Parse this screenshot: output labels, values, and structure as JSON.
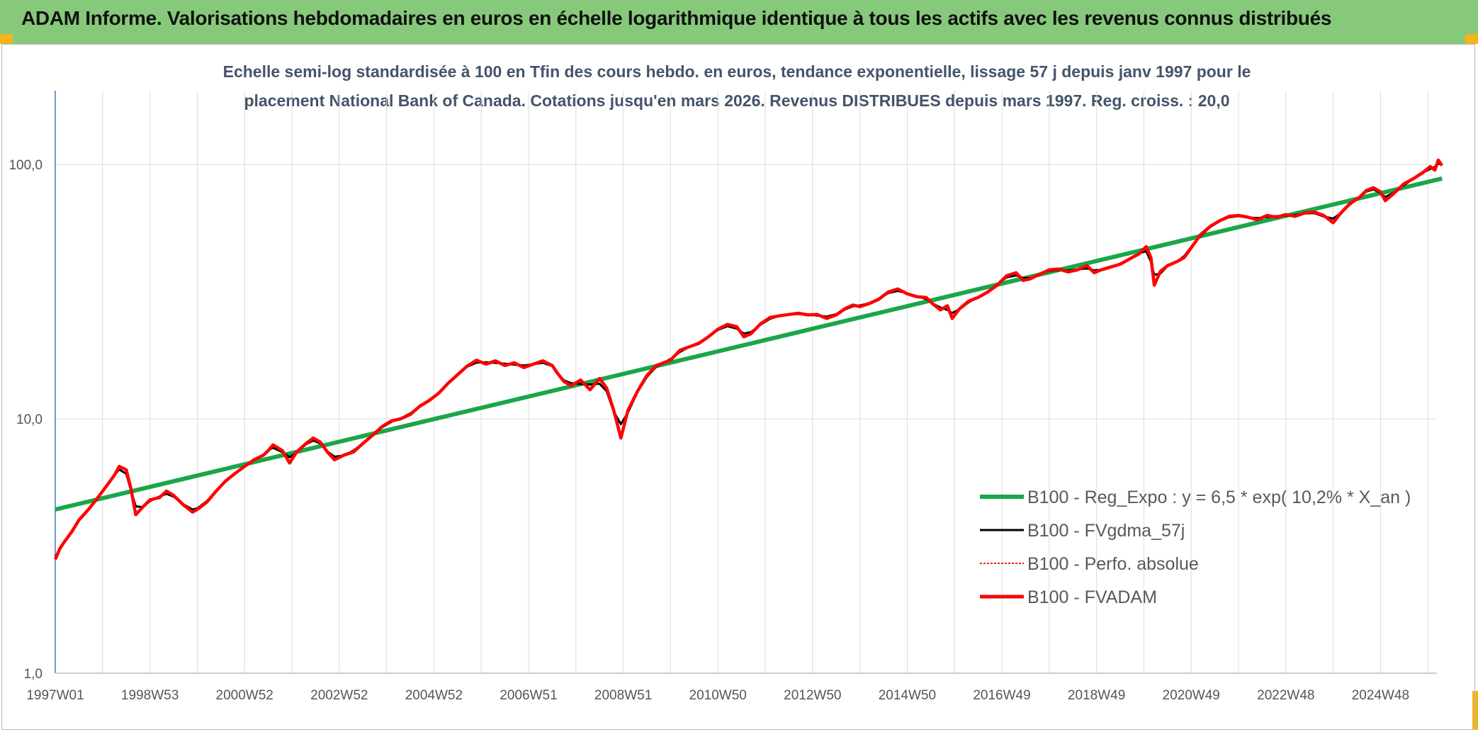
{
  "banner": {
    "title": "ADAM Informe. Valorisations hebdomadaires en euros en échelle logarithmique identique à tous les actifs avec les revenus connus distribués"
  },
  "colors": {
    "banner_bg": "#86c97a",
    "corner_accent": "#f2b51c",
    "reg_expo": "#1aa64a",
    "fvgdma": "#000000",
    "perfo": "#e8201c",
    "fvadam": "#ff0000"
  },
  "chart_data": {
    "type": "line",
    "subtitle_line1": "Echelle semi-log standardisée à 100 en Tfin des cours hebdo. en euros, tendance exponentielle, lissage 57 j depuis janv 1997 pour le",
    "subtitle_line2": "placement National Bank of Canada. Cotations jusqu'en mars 2026. Revenus DISTRIBUES depuis mars 1997. Reg. croiss. : 20,0",
    "y_scale": "log",
    "ylim": [
      1,
      200
    ],
    "yticks": [
      1,
      10,
      100
    ],
    "ytick_labels": [
      "1,0",
      "10,0",
      "100,0"
    ],
    "xlim": [
      1997.0,
      2026.3
    ],
    "xticks": [
      1997.0,
      1999.0,
      2001.0,
      2003.0,
      2005.0,
      2007.0,
      2009.0,
      2011.0,
      2013.0,
      2015.0,
      2017.0,
      2019.0,
      2021.0,
      2023.0,
      2025.0
    ],
    "xtick_labels": [
      "1997W01",
      "1998W53",
      "2000W52",
      "2002W52",
      "2004W52",
      "2006W51",
      "2008W51",
      "2010W50",
      "2012W50",
      "2014W50",
      "2016W49",
      "2018W49",
      "2020W49",
      "2022W48",
      "2024W48"
    ],
    "grid": true,
    "legend_position": "lower-right",
    "series": [
      {
        "name": "B100 - Reg_Expo : y = 6,5 * exp( 10,2% *  X_an )",
        "key": "reg",
        "points": [
          [
            1997.0,
            4.4
          ],
          [
            2026.3,
            88.0
          ]
        ]
      },
      {
        "name": "B100 - FVgdma_57j",
        "key": "fvgdma",
        "points": []
      },
      {
        "name": "B100 - Perfo. absolue",
        "key": "perfo",
        "points": []
      },
      {
        "name": "B100 - FVADAM",
        "key": "fvadam",
        "points": [
          [
            1997.0,
            2.8
          ],
          [
            1997.1,
            3.1
          ],
          [
            1997.2,
            3.3
          ],
          [
            1997.35,
            3.6
          ],
          [
            1997.5,
            4.0
          ],
          [
            1997.7,
            4.4
          ],
          [
            1997.9,
            4.9
          ],
          [
            1998.1,
            5.5
          ],
          [
            1998.25,
            6.0
          ],
          [
            1998.35,
            6.5
          ],
          [
            1998.5,
            6.3
          ],
          [
            1998.6,
            5.3
          ],
          [
            1998.7,
            4.2
          ],
          [
            1998.85,
            4.5
          ],
          [
            1999.0,
            4.8
          ],
          [
            1999.2,
            4.9
          ],
          [
            1999.35,
            5.2
          ],
          [
            1999.5,
            5.0
          ],
          [
            1999.7,
            4.6
          ],
          [
            1999.9,
            4.3
          ],
          [
            2000.0,
            4.4
          ],
          [
            2000.2,
            4.7
          ],
          [
            2000.4,
            5.2
          ],
          [
            2000.6,
            5.7
          ],
          [
            2000.8,
            6.1
          ],
          [
            2001.0,
            6.5
          ],
          [
            2001.2,
            6.9
          ],
          [
            2001.4,
            7.2
          ],
          [
            2001.5,
            7.5
          ],
          [
            2001.6,
            7.9
          ],
          [
            2001.8,
            7.5
          ],
          [
            2001.95,
            6.7
          ],
          [
            2002.1,
            7.4
          ],
          [
            2002.3,
            8.0
          ],
          [
            2002.45,
            8.4
          ],
          [
            2002.6,
            8.1
          ],
          [
            2002.75,
            7.4
          ],
          [
            2002.9,
            6.9
          ],
          [
            2003.1,
            7.2
          ],
          [
            2003.3,
            7.4
          ],
          [
            2003.5,
            8.0
          ],
          [
            2003.7,
            8.6
          ],
          [
            2003.9,
            9.3
          ],
          [
            2004.1,
            9.8
          ],
          [
            2004.3,
            10.0
          ],
          [
            2004.5,
            10.4
          ],
          [
            2004.7,
            11.2
          ],
          [
            2004.9,
            11.8
          ],
          [
            2005.1,
            12.6
          ],
          [
            2005.3,
            13.8
          ],
          [
            2005.5,
            14.9
          ],
          [
            2005.7,
            16.1
          ],
          [
            2005.9,
            17.0
          ],
          [
            2006.1,
            16.4
          ],
          [
            2006.3,
            16.9
          ],
          [
            2006.5,
            16.2
          ],
          [
            2006.7,
            16.6
          ],
          [
            2006.9,
            15.9
          ],
          [
            2007.1,
            16.4
          ],
          [
            2007.3,
            16.9
          ],
          [
            2007.5,
            16.2
          ],
          [
            2007.6,
            15.2
          ],
          [
            2007.75,
            14.0
          ],
          [
            2007.9,
            13.5
          ],
          [
            2008.1,
            14.2
          ],
          [
            2008.3,
            13.0
          ],
          [
            2008.5,
            14.4
          ],
          [
            2008.65,
            13.2
          ],
          [
            2008.8,
            10.8
          ],
          [
            2008.95,
            8.4
          ],
          [
            2009.1,
            10.8
          ],
          [
            2009.3,
            12.8
          ],
          [
            2009.5,
            14.8
          ],
          [
            2009.7,
            16.2
          ],
          [
            2010.0,
            17.0
          ],
          [
            2010.2,
            18.6
          ],
          [
            2010.4,
            19.2
          ],
          [
            2010.6,
            19.8
          ],
          [
            2010.8,
            21.0
          ],
          [
            2011.0,
            22.5
          ],
          [
            2011.2,
            23.5
          ],
          [
            2011.4,
            23.0
          ],
          [
            2011.55,
            21.0
          ],
          [
            2011.7,
            21.6
          ],
          [
            2011.9,
            23.6
          ],
          [
            2012.1,
            25.0
          ],
          [
            2012.3,
            25.4
          ],
          [
            2012.5,
            25.7
          ],
          [
            2012.7,
            26.0
          ],
          [
            2012.9,
            25.6
          ],
          [
            2013.1,
            25.7
          ],
          [
            2013.3,
            24.8
          ],
          [
            2013.5,
            25.6
          ],
          [
            2013.7,
            27.2
          ],
          [
            2013.85,
            28.0
          ],
          [
            2014.0,
            27.6
          ],
          [
            2014.2,
            28.4
          ],
          [
            2014.4,
            29.5
          ],
          [
            2014.6,
            31.5
          ],
          [
            2014.8,
            32.4
          ],
          [
            2015.0,
            31.0
          ],
          [
            2015.2,
            30.2
          ],
          [
            2015.4,
            30.0
          ],
          [
            2015.55,
            28.2
          ],
          [
            2015.7,
            26.8
          ],
          [
            2015.85,
            27.8
          ],
          [
            2015.95,
            24.8
          ],
          [
            2016.1,
            27.0
          ],
          [
            2016.3,
            29.0
          ],
          [
            2016.5,
            30.0
          ],
          [
            2016.7,
            31.5
          ],
          [
            2016.9,
            33.5
          ],
          [
            2017.1,
            36.5
          ],
          [
            2017.3,
            37.5
          ],
          [
            2017.45,
            35.0
          ],
          [
            2017.6,
            35.5
          ],
          [
            2017.8,
            37.0
          ],
          [
            2018.0,
            38.5
          ],
          [
            2018.2,
            38.8
          ],
          [
            2018.4,
            37.8
          ],
          [
            2018.6,
            38.5
          ],
          [
            2018.8,
            40.0
          ],
          [
            2018.95,
            37.5
          ],
          [
            2019.1,
            38.5
          ],
          [
            2019.3,
            39.5
          ],
          [
            2019.5,
            40.5
          ],
          [
            2019.7,
            42.5
          ],
          [
            2019.9,
            44.5
          ],
          [
            2020.05,
            47.5
          ],
          [
            2020.15,
            43.0
          ],
          [
            2020.22,
            33.5
          ],
          [
            2020.35,
            38.0
          ],
          [
            2020.5,
            40.0
          ],
          [
            2020.7,
            41.5
          ],
          [
            2020.85,
            43.0
          ],
          [
            2021.0,
            47.0
          ],
          [
            2021.2,
            53.0
          ],
          [
            2021.4,
            57.0
          ],
          [
            2021.6,
            60.0
          ],
          [
            2021.8,
            62.5
          ],
          [
            2022.0,
            63.0
          ],
          [
            2022.2,
            62.0
          ],
          [
            2022.4,
            60.5
          ],
          [
            2022.6,
            63.0
          ],
          [
            2022.8,
            62.0
          ],
          [
            2023.0,
            63.5
          ],
          [
            2023.2,
            62.5
          ],
          [
            2023.4,
            64.5
          ],
          [
            2023.6,
            65.0
          ],
          [
            2023.8,
            63.0
          ],
          [
            2024.0,
            59.0
          ],
          [
            2024.15,
            64.0
          ],
          [
            2024.35,
            70.0
          ],
          [
            2024.55,
            74.0
          ],
          [
            2024.7,
            79.0
          ],
          [
            2024.85,
            81.0
          ],
          [
            2025.0,
            78.0
          ],
          [
            2025.1,
            72.0
          ],
          [
            2025.25,
            76.0
          ],
          [
            2025.5,
            84.0
          ],
          [
            2025.7,
            88.0
          ],
          [
            2025.9,
            93.0
          ],
          [
            2026.05,
            98.0
          ],
          [
            2026.15,
            95.0
          ],
          [
            2026.22,
            104.0
          ],
          [
            2026.3,
            99.0
          ]
        ]
      }
    ]
  }
}
